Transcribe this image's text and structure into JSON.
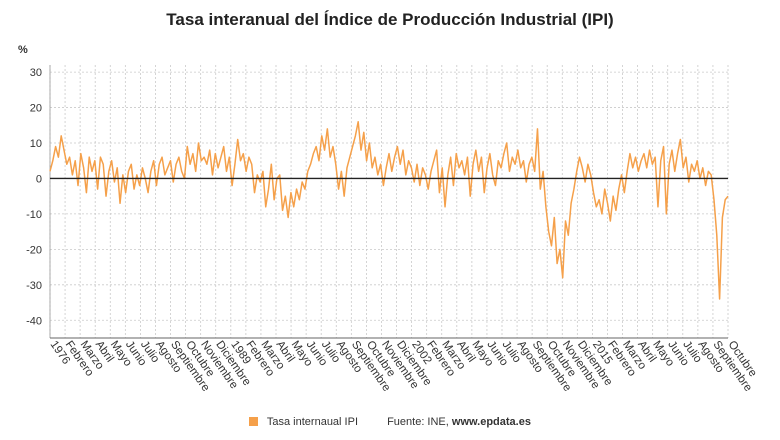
{
  "title": "Tasa interanual del Índice de Producción Industrial (IPI)",
  "chart_data": {
    "type": "line",
    "title": "Tasa interanual del Índice de Producción Industrial (IPI)",
    "y_unit": "%",
    "ylim": [
      -45,
      32
    ],
    "yticks": [
      30,
      20,
      10,
      0,
      -10,
      -20,
      -30,
      -40
    ],
    "grid": true,
    "legend_position": "bottom-center",
    "x_tick_labels": [
      "1976",
      "Febrero",
      "Marzo",
      "Abril",
      "Mayo",
      "Junio",
      "Julio",
      "Agosto",
      "Septiembre",
      "Octubre",
      "Noviembre",
      "Diciembre",
      "1989",
      "Febrero",
      "Marzo",
      "Abril",
      "Mayo",
      "Junio",
      "Julio",
      "Agosto",
      "Septiembre",
      "Octubre",
      "Noviembre",
      "Diciembre",
      "2002",
      "Febrero",
      "Marzo",
      "Abril",
      "Mayo",
      "Junio",
      "Julio",
      "Agosto",
      "Septiembre",
      "Octubre",
      "Noviembre",
      "Diciembre",
      "2015",
      "Febrero",
      "Marzo",
      "Abril",
      "Mayo",
      "Junio",
      "Julio",
      "Agosto",
      "Septiembre",
      "Octubre"
    ],
    "series": [
      {
        "name": "Tasa internaual IPI",
        "color": "#f5a04a",
        "values": [
          2,
          5,
          9,
          6,
          12,
          8,
          4,
          6,
          1,
          5,
          -2,
          7,
          3,
          -4,
          6,
          2,
          5,
          -3,
          6,
          4,
          -5,
          2,
          5,
          -1,
          3,
          -7,
          1,
          -4,
          2,
          4,
          -3,
          1,
          -2,
          3,
          0,
          -4,
          2,
          5,
          -2,
          4,
          6,
          1,
          3,
          5,
          -1,
          4,
          6,
          2,
          0,
          9,
          4,
          7,
          2,
          10,
          5,
          6,
          4,
          8,
          1,
          7,
          3,
          6,
          9,
          2,
          6,
          -2,
          4,
          11,
          5,
          7,
          2,
          6,
          4,
          -4,
          1,
          -1,
          2,
          -8,
          -3,
          4,
          -6,
          0,
          1,
          -9,
          -5,
          -11,
          -4,
          -8,
          -3,
          -6,
          -1,
          -3,
          2,
          4,
          7,
          9,
          5,
          12,
          8,
          14,
          6,
          9,
          4,
          -3,
          2,
          -5,
          3,
          6,
          9,
          12,
          16,
          8,
          13,
          5,
          10,
          3,
          6,
          1,
          4,
          -2,
          3,
          7,
          2,
          6,
          9,
          4,
          8,
          1,
          5,
          3,
          -1,
          4,
          -2,
          3,
          1,
          -3,
          2,
          5,
          8,
          -4,
          3,
          -8,
          1,
          6,
          -2,
          7,
          3,
          5,
          1,
          6,
          -5,
          4,
          8,
          2,
          6,
          -4,
          3,
          7,
          1,
          -2,
          5,
          3,
          7,
          10,
          2,
          6,
          4,
          8,
          3,
          5,
          -1,
          4,
          6,
          2,
          14,
          -3,
          2,
          -8,
          -15,
          -19,
          -11,
          -24,
          -20,
          -28,
          -12,
          -16,
          -7,
          -3,
          2,
          6,
          3,
          -1,
          4,
          1,
          -4,
          -8,
          -6,
          -10,
          -3,
          -7,
          -12,
          -5,
          -9,
          -3,
          1,
          -4,
          2,
          7,
          3,
          6,
          2,
          5,
          7,
          3,
          8,
          4,
          6,
          -8,
          5,
          9,
          -10,
          4,
          8,
          2,
          7,
          11,
          3,
          6,
          -1,
          4,
          2,
          5,
          0,
          3,
          -2,
          2,
          1,
          -6,
          -16,
          -34,
          -11,
          -6,
          -5
        ]
      }
    ]
  },
  "legend": {
    "label": "Tasa internaual IPI",
    "color": "#f5a04a"
  },
  "source": {
    "text": "Fuente: INE,",
    "site": "www.epdata.es"
  }
}
